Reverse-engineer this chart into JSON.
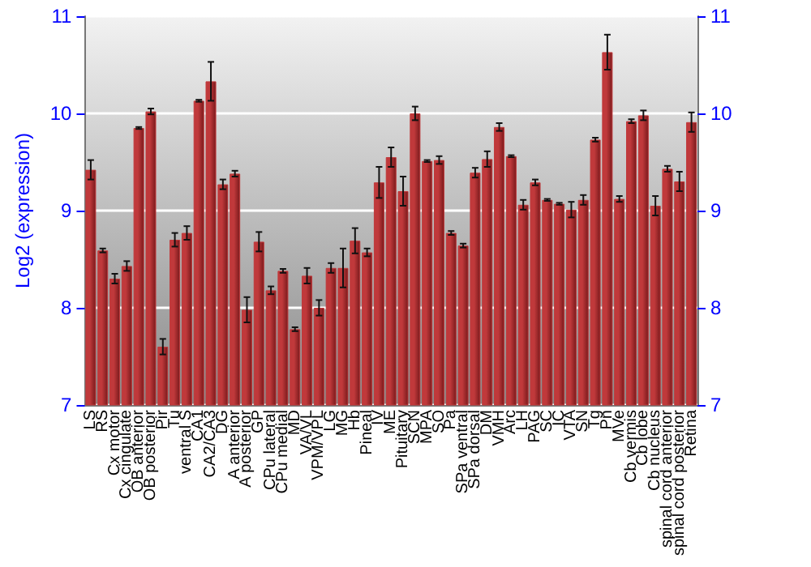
{
  "chart_data": {
    "type": "bar",
    "ylabel": "Log2 (expression)",
    "categories": [
      "LS",
      "RS",
      "Cx motor",
      "Cx cingulate",
      "OB anterior",
      "OB posterior",
      "Pir",
      "Tu",
      "ventral S",
      "CA1",
      "CA2/CA3",
      "DG",
      "A anterior",
      "A posterior",
      "GP",
      "CPu lateral",
      "CPu medial",
      "MD",
      "VA/VL",
      "VPM/VPL",
      "LG",
      "MG",
      "Hb",
      "Pineal",
      "IV",
      "ME",
      "Pituitary",
      "SCN",
      "MPA",
      "SO",
      "Pa",
      "SPa ventral",
      "SPa dorsal",
      "DM",
      "VMH",
      "Arc",
      "LH",
      "PAG",
      "SC",
      "IC",
      "VTA",
      "SN",
      "Tg",
      "Pn",
      "MVe",
      "Cb vermis",
      "Cb lobe",
      "Cb nucleus",
      "spinal cord anterior",
      "spinal cord posterior",
      "Retina"
    ],
    "series": [
      {
        "color": "#c0393b",
        "values": [
          9.42,
          8.59,
          8.3,
          8.43,
          9.85,
          10.02,
          7.6,
          8.7,
          8.77,
          10.13,
          10.33,
          9.27,
          9.38,
          7.98,
          8.68,
          8.18,
          8.38,
          7.78,
          8.33,
          8.0,
          8.41,
          8.41,
          8.69,
          8.57,
          9.29,
          9.55,
          9.2,
          10.0,
          9.51,
          9.52,
          8.77,
          8.64,
          9.39,
          9.53,
          9.86,
          9.56,
          9.06,
          9.29,
          9.11,
          9.07,
          9.01,
          9.11,
          9.73,
          10.63,
          9.12,
          9.92,
          9.98,
          9.05,
          9.43,
          9.3,
          9.91
        ],
        "errors": [
          0.1,
          0.02,
          0.05,
          0.05,
          0.01,
          0.03,
          0.08,
          0.07,
          0.07,
          0.01,
          0.2,
          0.05,
          0.03,
          0.13,
          0.1,
          0.04,
          0.02,
          0.02,
          0.08,
          0.08,
          0.05,
          0.2,
          0.13,
          0.04,
          0.16,
          0.1,
          0.15,
          0.07,
          0.01,
          0.04,
          0.02,
          0.02,
          0.05,
          0.08,
          0.04,
          0.01,
          0.05,
          0.03,
          0.01,
          0.01,
          0.08,
          0.05,
          0.02,
          0.18,
          0.03,
          0.02,
          0.05,
          0.1,
          0.03,
          0.1,
          0.1
        ]
      }
    ],
    "ylim": [
      7,
      11
    ],
    "yticks": [
      7,
      8,
      9,
      10,
      11
    ],
    "y2lim": [
      7,
      11
    ],
    "y2ticks": [
      7,
      8,
      9,
      10,
      11
    ],
    "grid": "y"
  }
}
